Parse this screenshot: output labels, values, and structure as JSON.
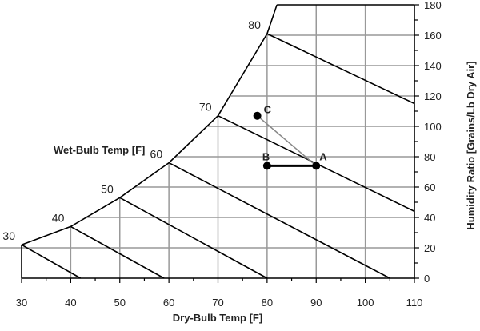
{
  "chart_data": {
    "type": "line",
    "title": "",
    "xlabel": "Dry-Bulb Temp [F]",
    "ylabel": "Humidity Ratio [Grains/Lb Dry Air]",
    "wet_bulb_label": "Wet-Bulb Temp [F]",
    "xlim": [
      30,
      110
    ],
    "ylim": [
      0,
      180
    ],
    "x_ticks": [
      30,
      40,
      50,
      60,
      70,
      80,
      90,
      100,
      110
    ],
    "y_ticks": [
      0,
      20,
      40,
      60,
      80,
      100,
      120,
      140,
      160,
      180
    ],
    "grid": true,
    "saturation_curve": [
      [
        30,
        22
      ],
      [
        40,
        34
      ],
      [
        50,
        53
      ],
      [
        60,
        76
      ],
      [
        70,
        107
      ],
      [
        80,
        161
      ],
      [
        82,
        180
      ]
    ],
    "wet_bulb_lines": [
      {
        "label": "30",
        "points": [
          [
            30,
            22
          ],
          [
            42,
            0
          ]
        ]
      },
      {
        "label": "40",
        "points": [
          [
            40,
            34
          ],
          [
            59,
            0
          ]
        ]
      },
      {
        "label": "50",
        "points": [
          [
            50,
            53
          ],
          [
            80,
            0
          ]
        ]
      },
      {
        "label": "60",
        "points": [
          [
            60,
            76
          ],
          [
            105,
            0
          ]
        ]
      },
      {
        "label": "70",
        "points": [
          [
            70,
            107
          ],
          [
            110,
            44
          ]
        ]
      },
      {
        "label": "80",
        "points": [
          [
            80,
            161
          ],
          [
            110,
            115
          ]
        ]
      }
    ],
    "points": [
      {
        "label": "A",
        "x": 90,
        "y": 74
      },
      {
        "label": "B",
        "x": 80,
        "y": 74
      },
      {
        "label": "C",
        "x": 78,
        "y": 107
      }
    ],
    "segments": [
      {
        "from": "A",
        "to": "B",
        "color": "#000000"
      },
      {
        "from": "A",
        "to": "C",
        "color": "#888888"
      }
    ],
    "colors": {
      "grid": "#999999",
      "lines": "#000000"
    }
  }
}
